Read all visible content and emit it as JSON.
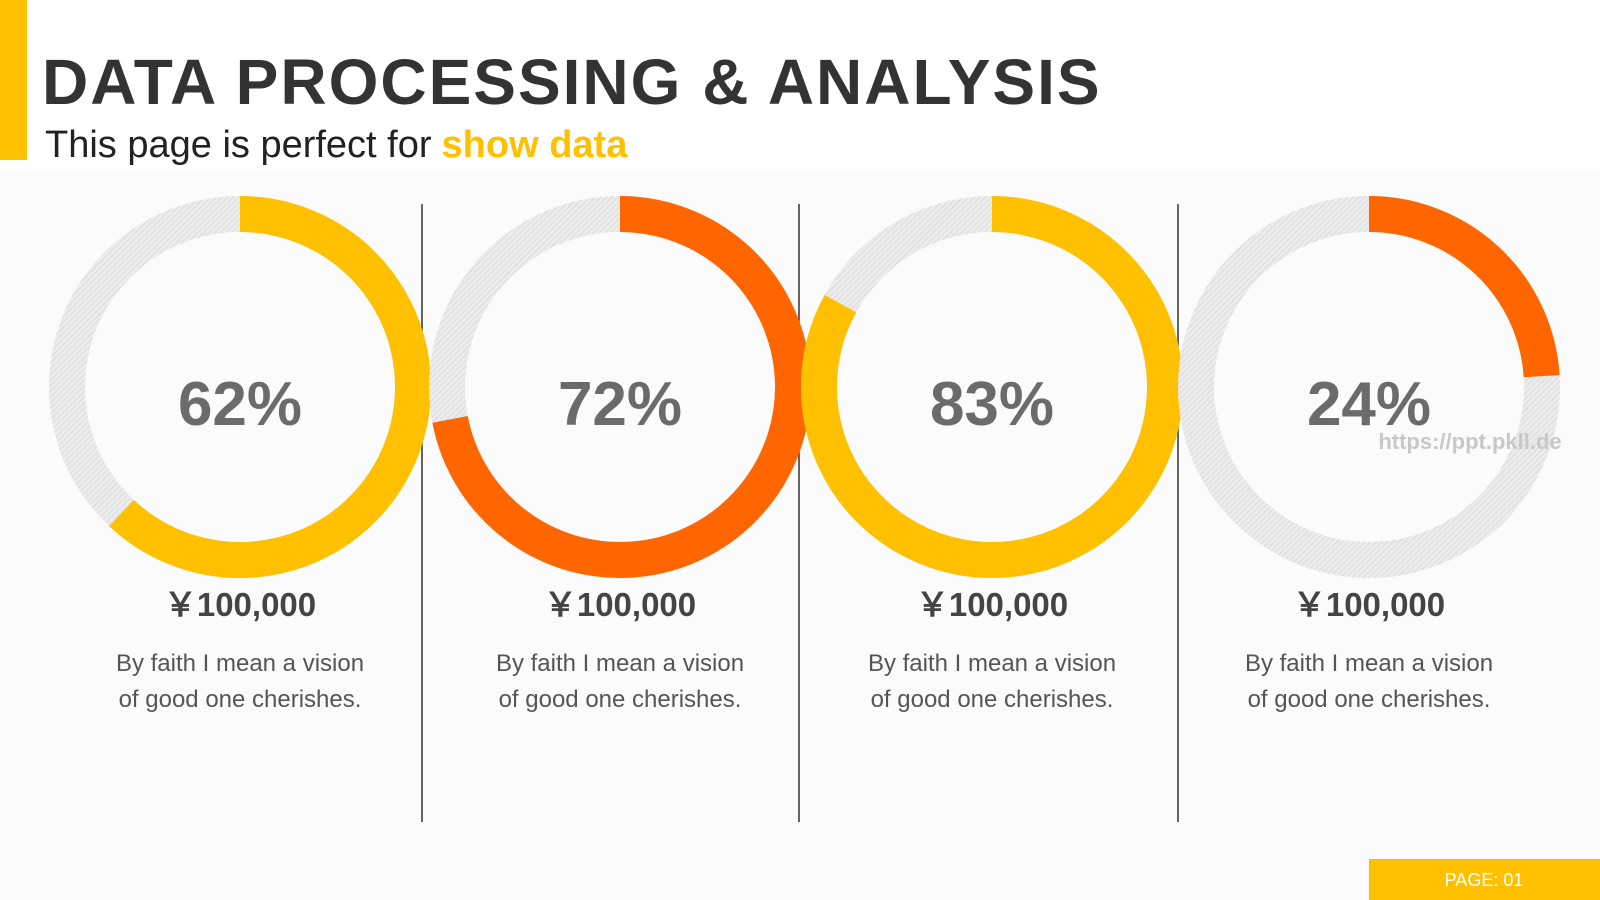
{
  "header": {
    "title": "DATA PROCESSING & ANALYSIS",
    "subtitle": {
      "text": "This page is perfect for",
      "highlight": "show data"
    }
  },
  "chart_data": [
    {
      "type": "donut",
      "values": [
        62
      ],
      "value_labels": [
        "62%"
      ],
      "color": "#ffc000",
      "annotations": [
        "￥100,000",
        "By faith I mean a vision",
        "of good one cherishes."
      ]
    },
    {
      "type": "donut",
      "values": [
        72
      ],
      "value_labels": [
        "72%"
      ],
      "color": "#ff6600",
      "annotations": [
        "￥100,000",
        "By faith I mean a vision",
        "of good one cherishes."
      ]
    },
    {
      "type": "donut",
      "values": [
        83
      ],
      "value_labels": [
        "83%"
      ],
      "color": "#ffc000",
      "annotations": [
        "￥100,000",
        "By faith I mean a vision",
        "of good one cherishes."
      ]
    },
    {
      "type": "donut",
      "values": [
        24
      ],
      "value_labels": [
        "24%"
      ],
      "color": "#ff6600",
      "annotations": [
        "￥100,000",
        "By faith I mean a vision",
        "of good one cherishes."
      ]
    }
  ],
  "watermark": "https://ppt.pkll.de",
  "footer": {
    "page": "PAGE: 01"
  }
}
